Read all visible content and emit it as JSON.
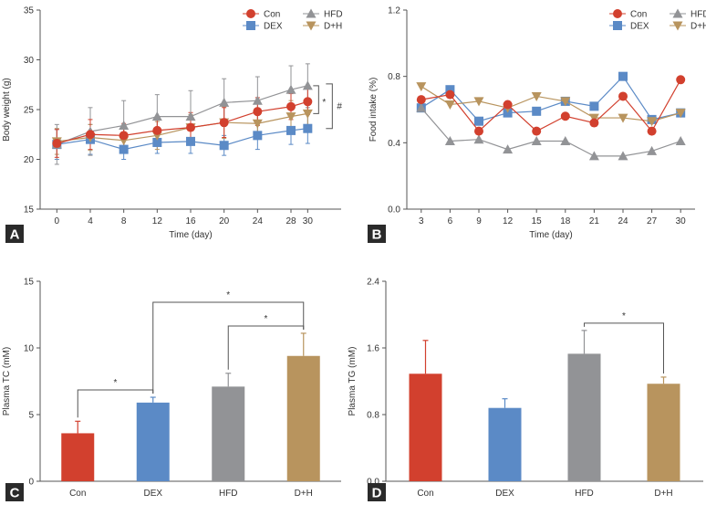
{
  "colors": {
    "Con": "#d2402e",
    "DEX": "#5b8ac6",
    "HFD": "#929396",
    "D+H": "#b8945e",
    "axis": "#555555",
    "badge": "#2a2a2a"
  },
  "chart_data": [
    {
      "panel": "A",
      "type": "line",
      "xlabel": "Time (day)",
      "ylabel": "Body weight (g)",
      "x": [
        0,
        4,
        8,
        12,
        16,
        20,
        24,
        28,
        30
      ],
      "xlim": [
        -2,
        34
      ],
      "ylim": [
        15,
        35
      ],
      "yticks": [
        15,
        20,
        25,
        30,
        35
      ],
      "legend": [
        "Con",
        "HFD",
        "DEX",
        "D+H"
      ],
      "series": [
        {
          "name": "Con",
          "marker": "circle",
          "values": [
            21.6,
            22.5,
            22.4,
            22.9,
            23.2,
            23.7,
            24.8,
            25.3,
            25.8
          ],
          "err": [
            1.4,
            1.5,
            1.2,
            1.1,
            1.5,
            1.5,
            1.4,
            1.3,
            1.3
          ]
        },
        {
          "name": "DEX",
          "marker": "square",
          "values": [
            21.5,
            22.0,
            21.0,
            21.7,
            21.8,
            21.4,
            22.4,
            22.9,
            23.1
          ],
          "err": [
            1.5,
            1.5,
            1.0,
            1.1,
            1.2,
            1.0,
            1.4,
            1.4,
            1.5
          ]
        },
        {
          "name": "HFD",
          "marker": "triangle-up",
          "values": [
            21.5,
            22.8,
            23.4,
            24.3,
            24.3,
            25.7,
            25.9,
            27.0,
            27.4
          ],
          "err": [
            2.0,
            2.4,
            2.5,
            2.2,
            2.6,
            2.4,
            2.4,
            2.4,
            2.2
          ]
        },
        {
          "name": "D+H",
          "marker": "triangle-down",
          "values": [
            21.8,
            22.2,
            21.9,
            22.4,
            23.2,
            23.7,
            23.6,
            24.3,
            24.6
          ],
          "err": [
            1.3,
            1.3,
            1.3,
            1.4,
            1.3,
            1.6,
            1.4,
            1.6,
            1.5
          ]
        }
      ],
      "annotations": [
        {
          "text": "*",
          "between": [
            "HFD",
            "D+H"
          ]
        },
        {
          "text": "#",
          "between": [
            "HFD",
            "DEX"
          ]
        }
      ]
    },
    {
      "panel": "B",
      "type": "line",
      "xlabel": "Time (day)",
      "ylabel": "Food intake (%)",
      "x": [
        3,
        6,
        9,
        12,
        15,
        18,
        21,
        24,
        27,
        30
      ],
      "xlim": [
        1.5,
        31.5
      ],
      "ylim": [
        0,
        1.2
      ],
      "yticks": [
        0,
        0.4,
        0.8,
        1.2
      ],
      "legend": [
        "Con",
        "HFD",
        "DEX",
        "D+H"
      ],
      "series": [
        {
          "name": "Con",
          "marker": "circle",
          "values": [
            0.66,
            0.69,
            0.47,
            0.63,
            0.47,
            0.56,
            0.52,
            0.68,
            0.47,
            0.78
          ]
        },
        {
          "name": "DEX",
          "marker": "square",
          "values": [
            0.61,
            0.72,
            0.53,
            0.58,
            0.59,
            0.65,
            0.62,
            0.8,
            0.54,
            0.58
          ]
        },
        {
          "name": "HFD",
          "marker": "triangle-up",
          "values": [
            0.61,
            0.41,
            0.42,
            0.36,
            0.41,
            0.41,
            0.32,
            0.32,
            0.35,
            0.41
          ]
        },
        {
          "name": "D+H",
          "marker": "triangle-down",
          "values": [
            0.74,
            0.63,
            0.65,
            0.61,
            0.68,
            0.65,
            0.55,
            0.55,
            0.53,
            0.58
          ]
        }
      ]
    },
    {
      "panel": "C",
      "type": "bar",
      "ylabel": "Plasma TC (mM)",
      "categories": [
        "Con",
        "DEX",
        "HFD",
        "D+H"
      ],
      "values": [
        3.6,
        5.9,
        7.1,
        9.4
      ],
      "err": [
        0.9,
        0.4,
        1.0,
        1.7
      ],
      "ylim": [
        0,
        15
      ],
      "yticks": [
        0,
        5,
        10,
        15
      ],
      "brackets": [
        {
          "from": 0,
          "to": 1,
          "text": "*"
        },
        {
          "from": 1,
          "to": 3,
          "text": "*"
        },
        {
          "from": 2,
          "to": 3,
          "text": "*"
        }
      ]
    },
    {
      "panel": "D",
      "type": "bar",
      "ylabel": "Plasma TG (mM)",
      "categories": [
        "Con",
        "DEX",
        "HFD",
        "D+H"
      ],
      "values": [
        1.29,
        0.88,
        1.53,
        1.17
      ],
      "err": [
        0.4,
        0.11,
        0.28,
        0.08
      ],
      "ylim": [
        0,
        2.4
      ],
      "yticks": [
        0,
        0.8,
        1.6,
        2.4
      ],
      "brackets": [
        {
          "from": 2,
          "to": 3,
          "text": "*"
        }
      ]
    }
  ]
}
